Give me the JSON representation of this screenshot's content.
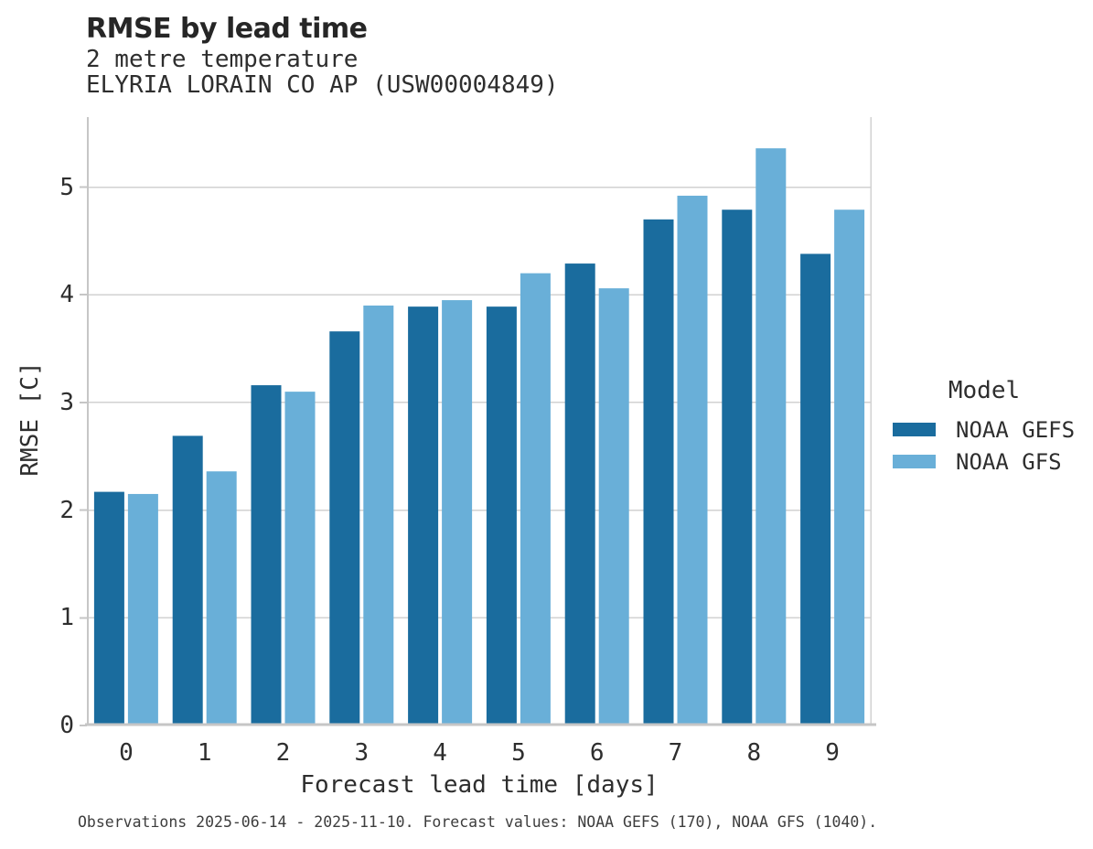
{
  "header": {
    "title": "RMSE by lead time",
    "subtitle": "2 metre temperature",
    "station": "ELYRIA LORAIN CO AP (USW00004849)"
  },
  "chart_data": {
    "type": "bar",
    "title": "RMSE by lead time",
    "subtitle": "2 metre temperature",
    "station": "ELYRIA LORAIN CO AP (USW00004849)",
    "xlabel": "Forecast lead time [days]",
    "ylabel": "RMSE [C]",
    "categories": [
      "0",
      "1",
      "2",
      "3",
      "4",
      "5",
      "6",
      "7",
      "8",
      "9"
    ],
    "series": [
      {
        "name": "NOAA GEFS",
        "color": "#1a6c9e",
        "values": [
          2.17,
          2.69,
          3.16,
          3.66,
          3.89,
          3.89,
          4.29,
          4.7,
          4.79,
          4.38
        ]
      },
      {
        "name": "NOAA GFS",
        "color": "#69afd8",
        "values": [
          2.15,
          2.36,
          3.1,
          3.9,
          3.95,
          4.2,
          4.06,
          4.92,
          5.36,
          4.79
        ]
      }
    ],
    "ylim": [
      0,
      5.65
    ],
    "yticks": [
      0,
      1,
      2,
      3,
      4,
      5
    ],
    "grid": "horizontal",
    "legend_position": "right"
  },
  "legend": {
    "title": "Model",
    "entries": [
      {
        "label": "NOAA GEFS",
        "color": "#1a6c9e"
      },
      {
        "label": "NOAA GFS",
        "color": "#69afd8"
      }
    ]
  },
  "footer": {
    "text": "Observations 2025-06-14 - 2025-11-10. Forecast values: NOAA GEFS (170), NOAA GFS (1040)."
  },
  "style": {
    "grid_color": "#d2d2d2",
    "spine_color": "#c6c6c6",
    "tick_color": "#c6c6c6"
  }
}
